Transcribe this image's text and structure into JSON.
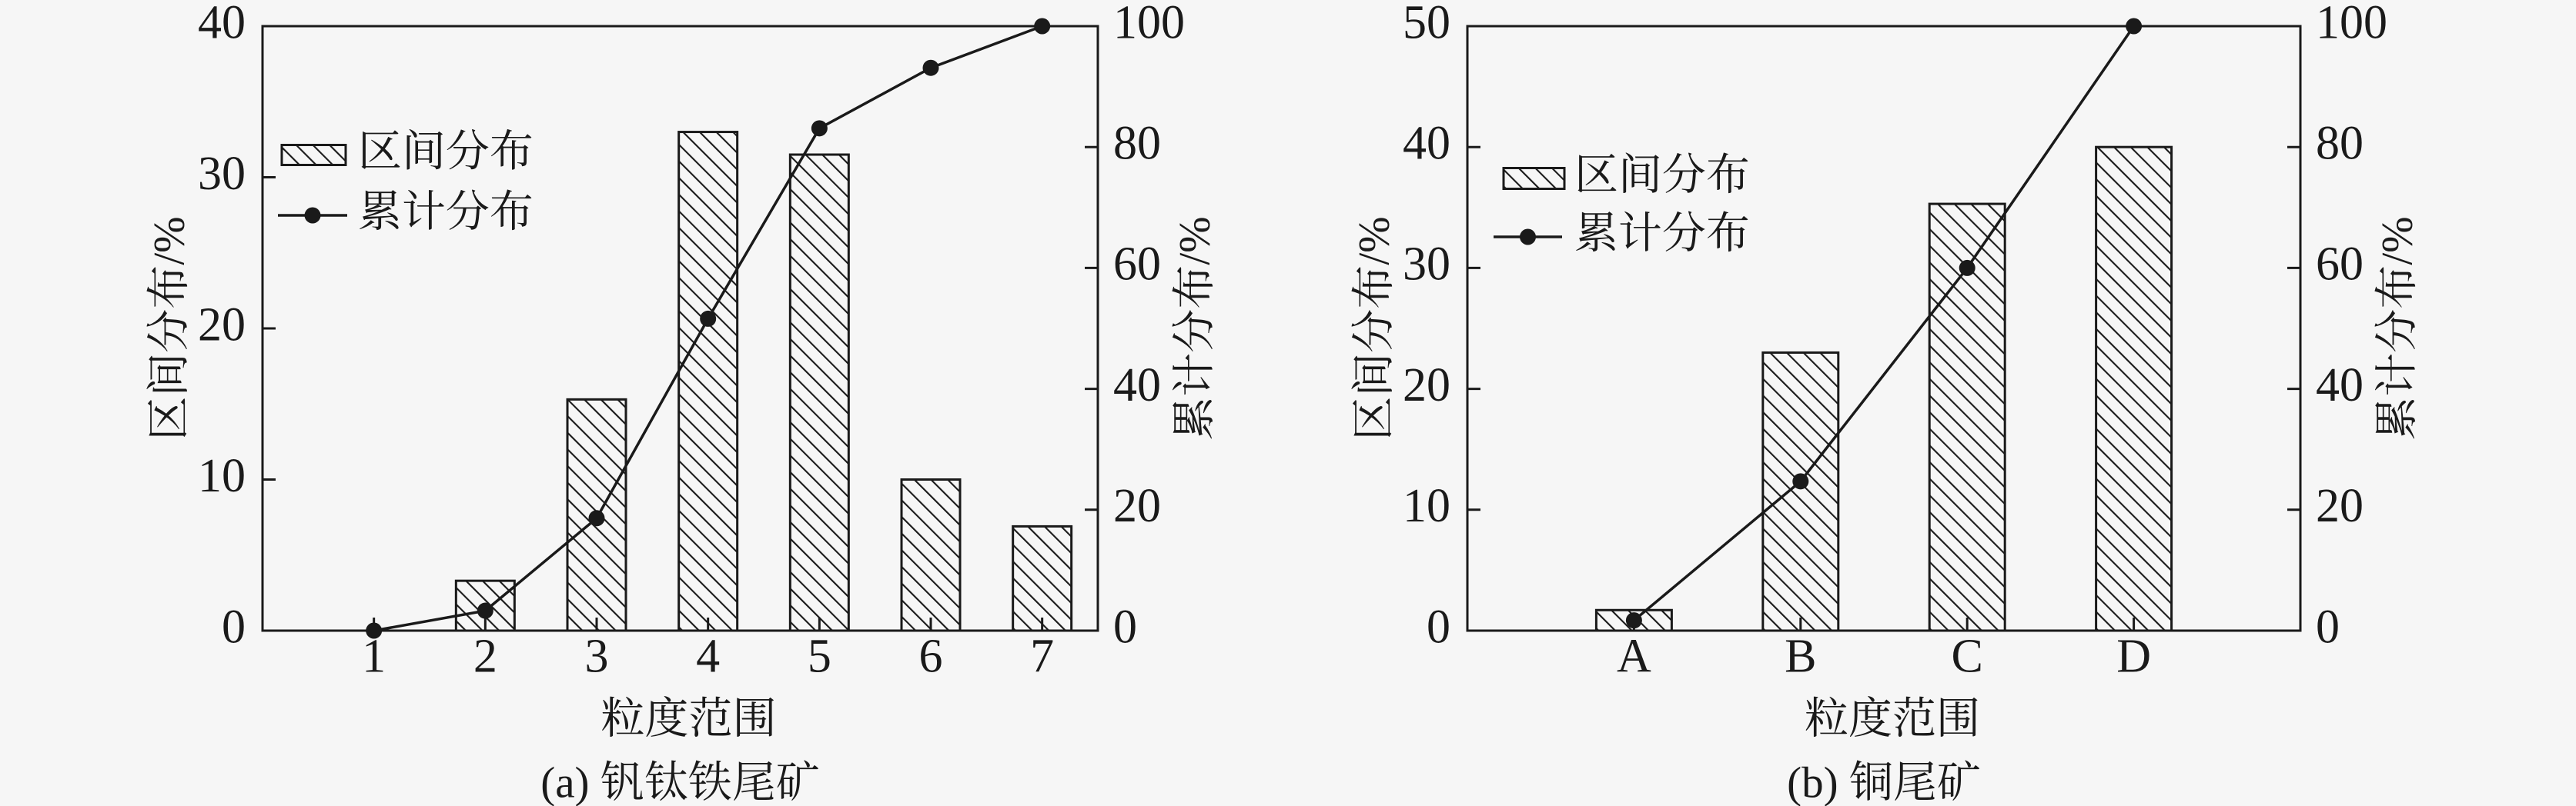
{
  "figure": {
    "background": "#f6f6f6",
    "ink": "#1a1a1a"
  },
  "chart_data": [
    {
      "type": "combo-bar-line",
      "panel_label": "(a) 钒钛铁尾矿",
      "xlabel": "粒度范围",
      "ylabel_left": "区间分布/%",
      "ylabel_right": "累计分布/%",
      "categories": [
        "1",
        "2",
        "3",
        "4",
        "5",
        "6",
        "7"
      ],
      "ylim_left": [
        0,
        40
      ],
      "yticks_left": [
        "0",
        "10",
        "20",
        "30",
        "40"
      ],
      "ylim_right": [
        0,
        100
      ],
      "yticks_right": [
        "0",
        "20",
        "40",
        "60",
        "80",
        "100"
      ],
      "grid": false,
      "legend_position": "upper-left",
      "series": [
        {
          "name": "区间分布",
          "type": "bar",
          "axis": "left",
          "marker": "hatched-box",
          "values": [
            0,
            3.3,
            15.3,
            33.0,
            31.5,
            10.0,
            6.9
          ]
        },
        {
          "name": "累计分布",
          "type": "line",
          "axis": "right",
          "marker": "filled-circle",
          "values": [
            0,
            3.3,
            18.6,
            51.6,
            83.1,
            93.1,
            100.0
          ]
        }
      ]
    },
    {
      "type": "combo-bar-line",
      "panel_label": "(b) 铜尾矿",
      "xlabel": "粒度范围",
      "ylabel_left": "区间分布/%",
      "ylabel_right": "累计分布/%",
      "categories": [
        "A",
        "B",
        "C",
        "D"
      ],
      "ylim_left": [
        0,
        50
      ],
      "yticks_left": [
        "0",
        "10",
        "20",
        "30",
        "40",
        "50"
      ],
      "ylim_right": [
        0,
        100
      ],
      "yticks_right": [
        "0",
        "20",
        "40",
        "60",
        "80",
        "100"
      ],
      "grid": false,
      "legend_position": "upper-left",
      "series": [
        {
          "name": "区间分布",
          "type": "bar",
          "axis": "left",
          "marker": "hatched-box",
          "values": [
            1.7,
            23.0,
            35.3,
            40.0
          ]
        },
        {
          "name": "累计分布",
          "type": "line",
          "axis": "right",
          "marker": "filled-circle",
          "values": [
            1.7,
            24.7,
            60.0,
            100.0
          ]
        }
      ]
    }
  ]
}
